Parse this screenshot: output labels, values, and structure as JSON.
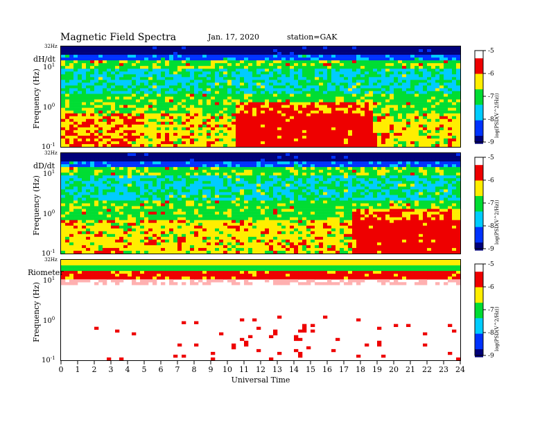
{
  "header": {
    "title": "Magnetic  Field  Spectra",
    "date": "Jan. 17, 2020",
    "station": "station=GAK"
  },
  "chart_data": [
    {
      "type": "heatmap",
      "panel_label": "dH/dt",
      "ylabel": "Frequency  (Hz)",
      "top_label": "32Hz",
      "y_ticks": [
        "10",
        "10",
        "10"
      ],
      "y_tick_exponents": [
        "1",
        "0",
        "-1"
      ],
      "y_scale": "log",
      "ylim": [
        0.1,
        32
      ],
      "xlim": [
        0,
        24
      ],
      "colorbar": {
        "ticks": [
          "-5",
          "-6",
          "-7",
          "-8",
          "-9"
        ],
        "label": "log(PSD(V^2/Hz))",
        "range": [
          -9,
          -5
        ]
      },
      "features": {
        "base": "green-cyan background with dark-blue top band",
        "active_hours": [
          10.5,
          18.5
        ],
        "peak_hour": 16.5
      }
    },
    {
      "type": "heatmap",
      "panel_label": "dD/dt",
      "ylabel": "Frequency  (Hz)",
      "top_label": "32Hz",
      "y_ticks": [
        "10",
        "10",
        "10"
      ],
      "y_tick_exponents": [
        "1",
        "0",
        "-1"
      ],
      "y_scale": "log",
      "ylim": [
        0.1,
        32
      ],
      "xlim": [
        0,
        24
      ],
      "colorbar": {
        "ticks": [
          "-5",
          "-6",
          "-7",
          "-8",
          "-9"
        ],
        "label": "log(PSD(V^2/Hz))",
        "range": [
          -9,
          -5
        ]
      },
      "features": {
        "base": "green-cyan background with dark-blue top band",
        "active_hours": [
          17.5,
          24
        ],
        "peak_hour": 19
      }
    },
    {
      "type": "heatmap",
      "panel_label": "Riometer",
      "ylabel": "Frequency  (Hz)",
      "top_label": "32Hz",
      "y_ticks": [
        "10",
        "10",
        "10"
      ],
      "y_tick_exponents": [
        "1",
        "0",
        "-1"
      ],
      "y_scale": "log",
      "ylim": [
        0.1,
        32
      ],
      "xlim": [
        0,
        24
      ],
      "xlabel": "Universal Time",
      "x_ticks": [
        "0",
        "1",
        "2",
        "3",
        "4",
        "5",
        "6",
        "7",
        "8",
        "9",
        "10",
        "11",
        "12",
        "13",
        "14",
        "15",
        "16",
        "17",
        "18",
        "19",
        "20",
        "21",
        "22",
        "23",
        "24"
      ],
      "colorbar": {
        "ticks": [
          "-5",
          "-6",
          "-7",
          "-8",
          "-9"
        ],
        "label": "log(PSD(V^2/Hz))",
        "range": [
          -9,
          -5
        ]
      },
      "features": {
        "base": "white with red/yellow top band and sparse red speckle",
        "active_hours": [
          10,
          15
        ]
      }
    }
  ],
  "colors": {
    "dark_blue": "#00007a",
    "blue": "#0033ff",
    "cyan": "#00ccff",
    "green": "#00dd33",
    "yellow": "#ffee00",
    "red": "#ee0000",
    "white": "#ffffff"
  }
}
